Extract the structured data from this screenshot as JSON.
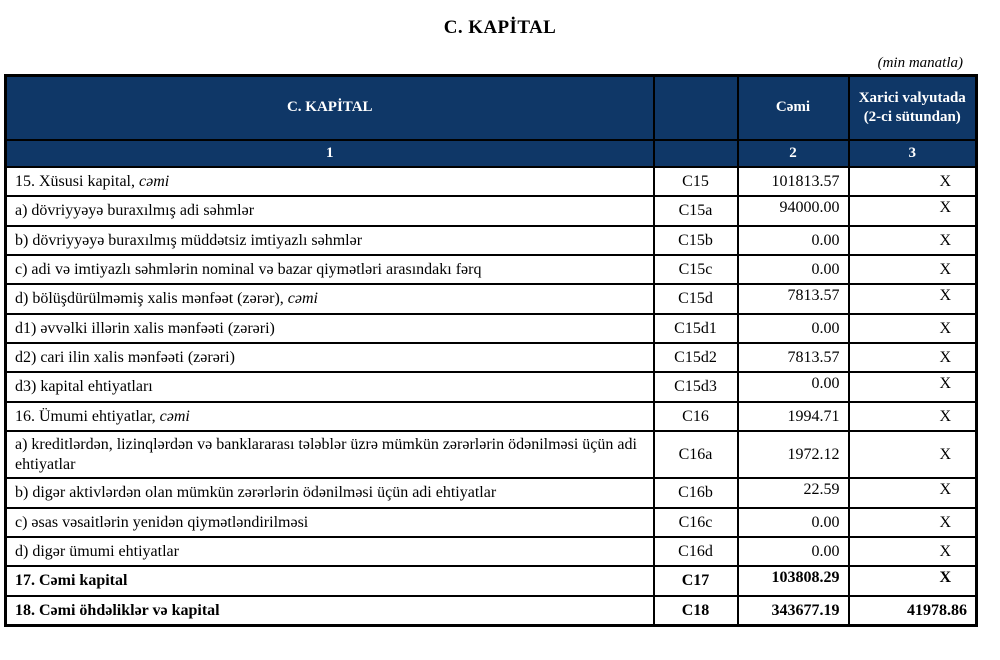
{
  "title": "C. KAPİTAL",
  "unit_note": "(min manatla)",
  "colors": {
    "header_bg": "#0f3767",
    "header_text": "#ffffff",
    "border": "#000000"
  },
  "table": {
    "header": {
      "col1": "C. KAPİTAL",
      "col2": "",
      "col3": "Cəmi",
      "col4": "Xarici valyutada (2-ci sütundan)"
    },
    "subheader": {
      "col1": "1",
      "col2": "",
      "col3": "2",
      "col4": "3"
    },
    "rows": [
      {
        "label": "15. Xüsusi kapital, ",
        "label_italic": "cəmi",
        "code": "C15",
        "value": "101813.57",
        "foreign": "X",
        "bold": false,
        "raised": false,
        "tall": false
      },
      {
        "label": "a) dövriyyəyə buraxılmış adi səhmlər",
        "label_italic": "",
        "code": "C15a",
        "value": "94000.00",
        "foreign": "X",
        "bold": false,
        "raised": true,
        "tall": false
      },
      {
        "label": "b) dövriyyəyə buraxılmış müddətsiz imtiyazlı səhmlər",
        "label_italic": "",
        "code": "C15b",
        "value": "0.00",
        "foreign": "X",
        "bold": false,
        "raised": false,
        "tall": false
      },
      {
        "label": "c) adi və imtiyazlı səhmlərin nominal və bazar qiymətləri arasındakı fərq",
        "label_italic": "",
        "code": "C15c",
        "value": "0.00",
        "foreign": "X",
        "bold": false,
        "raised": false,
        "tall": false
      },
      {
        "label": "d) bölüşdürülməmiş xalis mənfəət (zərər), ",
        "label_italic": "cəmi",
        "code": "C15d",
        "value": "7813.57",
        "foreign": "X",
        "bold": false,
        "raised": true,
        "tall": false
      },
      {
        "label": "d1) əvvəlki illərin xalis mənfəəti (zərəri)",
        "label_italic": "",
        "code": "C15d1",
        "value": "0.00",
        "foreign": "X",
        "bold": false,
        "raised": false,
        "tall": false
      },
      {
        "label": "d2) cari ilin xalis mənfəəti (zərəri)",
        "label_italic": "",
        "code": "C15d2",
        "value": "7813.57",
        "foreign": "X",
        "bold": false,
        "raised": false,
        "tall": false
      },
      {
        "label": "d3) kapital ehtiyatları",
        "label_italic": "",
        "code": "C15d3",
        "value": "0.00",
        "foreign": "X",
        "bold": false,
        "raised": true,
        "tall": false
      },
      {
        "label": "16. Ümumi ehtiyatlar, ",
        "label_italic": "cəmi",
        "code": "C16",
        "value": "1994.71",
        "foreign": "X",
        "bold": false,
        "raised": false,
        "tall": false
      },
      {
        "label": "a) kreditlərdən, lizinqlərdən və banklararası  tələblər üzrə mümkün zərərlərin ödənilməsi üçün adi ehtiyatlar",
        "label_italic": "",
        "code": "C16a",
        "value": "1972.12",
        "foreign": "X",
        "bold": false,
        "raised": false,
        "tall": true
      },
      {
        "label": "b) digər aktivlərdən olan mümkün zərərlərin ödənilməsi üçün adi ehtiyatlar",
        "label_italic": "",
        "code": "C16b",
        "value": "22.59",
        "foreign": "X",
        "bold": false,
        "raised": true,
        "tall": false
      },
      {
        "label": "c) əsas vəsaitlərin yenidən qiymətləndirilməsi",
        "label_italic": "",
        "code": "C16c",
        "value": "0.00",
        "foreign": "X",
        "bold": false,
        "raised": false,
        "tall": false
      },
      {
        "label": "d) digər ümumi ehtiyatlar",
        "label_italic": "",
        "code": "C16d",
        "value": "0.00",
        "foreign": "X",
        "bold": false,
        "raised": false,
        "tall": false
      },
      {
        "label": "17. Cəmi kapital",
        "label_italic": "",
        "code": "C17",
        "value": "103808.29",
        "foreign": "X",
        "bold": true,
        "raised": true,
        "tall": false
      },
      {
        "label": "18. Cəmi öhdəliklər və kapital",
        "label_italic": "",
        "code": "C18",
        "value": "343677.19",
        "foreign": "41978.86",
        "bold": true,
        "raised": false,
        "tall": false
      }
    ]
  }
}
